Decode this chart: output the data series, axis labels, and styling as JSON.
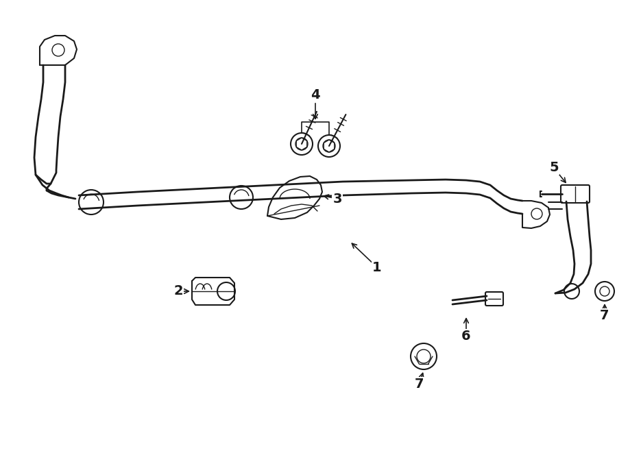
{
  "bg_color": "#ffffff",
  "line_color": "#1a1a1a",
  "fig_width": 9.0,
  "fig_height": 6.61,
  "dpi": 100,
  "label_fontsize": 14
}
